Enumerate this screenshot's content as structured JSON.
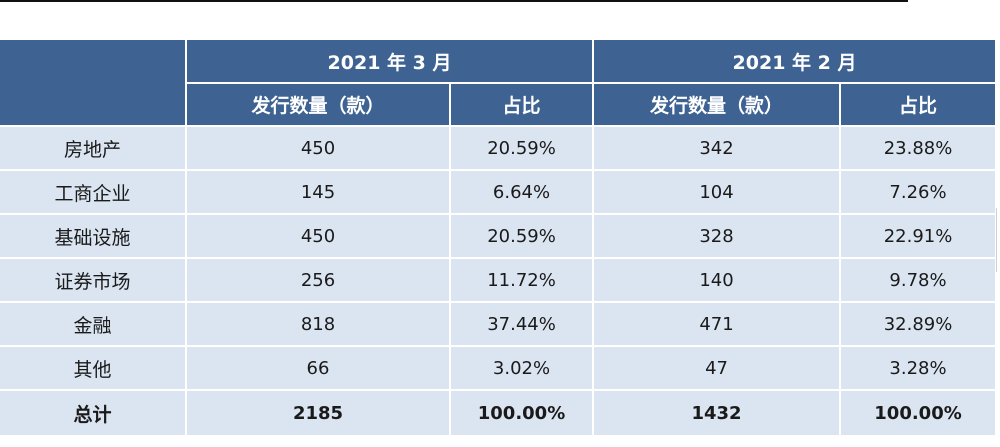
{
  "table": {
    "header": {
      "period_1": "2021 年 3 月",
      "period_2": "2021 年 2 月",
      "issue_count": "发行数量（款）",
      "share": "占比"
    },
    "rows": [
      {
        "category": "房地产",
        "mar_count": "450",
        "mar_share": "20.59%",
        "feb_count": "342",
        "feb_share": "23.88%"
      },
      {
        "category": "工商企业",
        "mar_count": "145",
        "mar_share": "6.64%",
        "feb_count": "104",
        "feb_share": "7.26%"
      },
      {
        "category": "基础设施",
        "mar_count": "450",
        "mar_share": "20.59%",
        "feb_count": "328",
        "feb_share": "22.91%"
      },
      {
        "category": "证券市场",
        "mar_count": "256",
        "mar_share": "11.72%",
        "feb_count": "140",
        "feb_share": "9.78%"
      },
      {
        "category": "金融",
        "mar_count": "818",
        "mar_share": "37.44%",
        "feb_count": "471",
        "feb_share": "32.89%"
      },
      {
        "category": "其他",
        "mar_count": "66",
        "mar_share": "3.02%",
        "feb_count": "47",
        "feb_share": "3.28%"
      }
    ],
    "total": {
      "category": "总计",
      "mar_count": "2185",
      "mar_share": "100.00%",
      "feb_count": "1432",
      "feb_share": "100.00%"
    }
  },
  "colors": {
    "header_bg": "#3e6291",
    "row_bg": "#dbe5f1",
    "header_text": "#ffffff"
  }
}
